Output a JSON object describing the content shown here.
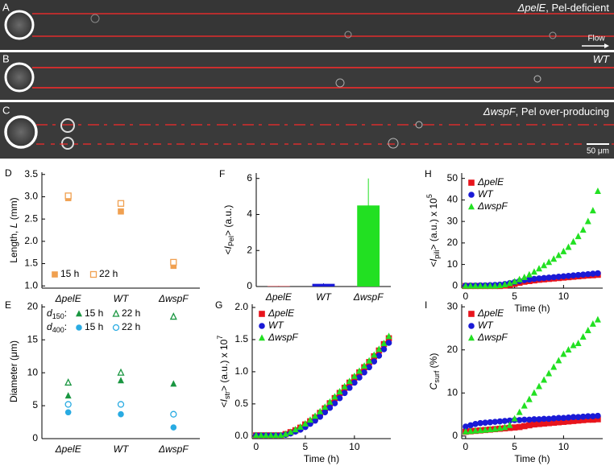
{
  "micrographs": [
    {
      "label": "A",
      "caption": [
        "ΔpelE",
        ", Pel-deficient"
      ]
    },
    {
      "label": "B",
      "caption": [
        "WT"
      ]
    },
    {
      "label": "C",
      "caption": [
        "ΔwspF",
        ", Pel over-producing"
      ]
    }
  ],
  "flow_label": "Flow",
  "scale_bar": "50 μm",
  "chart_data": [
    {
      "panel": "D",
      "type": "scatter",
      "categories": [
        "ΔpelE",
        "WT",
        "ΔwspF"
      ],
      "ylabel": [
        {
          "text": "Length, "
        },
        {
          "text": "L",
          "style": "italic"
        },
        {
          "text": " (mm)"
        }
      ],
      "ylim": [
        0.95,
        3.55
      ],
      "yticks": [
        {
          "value": 1,
          "label": "1.0"
        },
        1.5,
        {
          "value": 2,
          "label": "2.0"
        },
        2.5,
        {
          "value": 3,
          "label": "3.0"
        },
        3.5
      ],
      "legend": "lower left",
      "series": [
        {
          "name": "15 h",
          "color": "#f0a050",
          "marker": "square",
          "values": [
            2.97,
            2.67,
            1.45
          ]
        },
        {
          "name": "22 h",
          "color": "#f0a050",
          "marker": "square-open",
          "values": [
            3.02,
            2.85,
            1.53
          ]
        }
      ]
    },
    {
      "panel": "E",
      "type": "scatter",
      "categories": [
        "ΔpelE",
        "WT",
        "ΔwspF"
      ],
      "ylabel": [
        {
          "text": "Diameter (μm)"
        }
      ],
      "ylim": [
        0,
        20.4
      ],
      "yticks": [
        0,
        5,
        10,
        15,
        20
      ],
      "legend": "upper left",
      "legend_groups": [
        [
          {
            "text": "d",
            "style": "italic"
          },
          {
            "text": "150",
            "style": "sub"
          },
          {
            "text": ":"
          }
        ],
        [
          {
            "text": "d",
            "style": "italic"
          },
          {
            "text": "400",
            "style": "sub"
          },
          {
            "text": ":"
          }
        ]
      ],
      "series": [
        {
          "name": "15 h",
          "group": 0,
          "color": "#1a9641",
          "marker": "triangle",
          "values": [
            6.5,
            8.8,
            8.3
          ]
        },
        {
          "name": "22 h",
          "group": 0,
          "color": "#1a9641",
          "marker": "triangle-open",
          "values": [
            8.5,
            10,
            18.5
          ]
        },
        {
          "name": "15 h",
          "group": 1,
          "color": "#29abe2",
          "marker": "circle",
          "values": [
            4,
            3.7,
            1.7
          ]
        },
        {
          "name": "22 h",
          "group": 1,
          "color": "#29abe2",
          "marker": "circle-open",
          "values": [
            5.2,
            5.2,
            3.7
          ]
        }
      ]
    },
    {
      "panel": "F",
      "type": "bar",
      "categories": [
        "ΔpelE",
        "WT",
        "ΔwspF"
      ],
      "ylabel": [
        {
          "text": "<"
        },
        {
          "text": "I",
          "style": "italic"
        },
        {
          "text": "Pel",
          "style": "sub"
        },
        {
          "text": "> (a.u.)"
        }
      ],
      "ylim": [
        0,
        6.3
      ],
      "yticks": [
        0,
        2,
        4,
        6
      ],
      "values": [
        0.02,
        0.15,
        4.5
      ],
      "errors": [
        0.01,
        0.03,
        1.5
      ],
      "colors": [
        "#e8141c",
        "#1a1ad6",
        "#22e022"
      ]
    },
    {
      "panel": "G",
      "type": "scatter",
      "xlabel": "Time (h)",
      "x": [
        0,
        0.5,
        1,
        1.5,
        2,
        2.5,
        3,
        3.5,
        4,
        4.5,
        5,
        5.5,
        6,
        6.5,
        7,
        7.5,
        8,
        8.5,
        9,
        9.5,
        10,
        10.5,
        11,
        11.5,
        12,
        12.5,
        13,
        13.5
      ],
      "xlim": [
        -0.4,
        13.7
      ],
      "xticks": [
        0,
        5,
        10
      ],
      "ylim": [
        -0.04,
        2.05
      ],
      "yticks": [
        {
          "value": 0,
          "label": "0.0"
        },
        0.5,
        {
          "value": 1,
          "label": "1.0"
        },
        1.5,
        {
          "value": 2,
          "label": "2.0"
        }
      ],
      "ylabel": [
        {
          "text": "<"
        },
        {
          "text": "I",
          "style": "italic"
        },
        {
          "text": "str",
          "style": "sub"
        },
        {
          "text": "> (a.u.) x 10"
        },
        {
          "text": "7",
          "style": "sup"
        }
      ],
      "legend": "upper left",
      "series": [
        {
          "name": "ΔpelE",
          "color": "#e8141c",
          "marker": "square",
          "values": [
            0.01,
            0.01,
            0.01,
            0.01,
            0.01,
            0.01,
            0.03,
            0.06,
            0.09,
            0.13,
            0.18,
            0.23,
            0.29,
            0.36,
            0.43,
            0.51,
            0.59,
            0.67,
            0.75,
            0.83,
            0.91,
            0.99,
            1.07,
            1.15,
            1.24,
            1.33,
            1.43,
            1.52
          ]
        },
        {
          "name": "WT",
          "color": "#1a1ad6",
          "marker": "circle",
          "values": [
            0.01,
            0.01,
            0.01,
            0.01,
            0.01,
            0.01,
            0.02,
            0.04,
            0.07,
            0.1,
            0.14,
            0.19,
            0.24,
            0.3,
            0.37,
            0.44,
            0.51,
            0.59,
            0.67,
            0.75,
            0.83,
            0.91,
            0.99,
            1.07,
            1.16,
            1.25,
            1.35,
            1.45
          ]
        },
        {
          "name": "ΔwspF",
          "color": "#22e022",
          "marker": "triangle",
          "values": [
            0.01,
            0.01,
            0.01,
            0.01,
            0.01,
            0.01,
            0.03,
            0.06,
            0.1,
            0.14,
            0.19,
            0.25,
            0.31,
            0.38,
            0.45,
            0.53,
            0.61,
            0.69,
            0.77,
            0.85,
            0.93,
            1.01,
            1.09,
            1.17,
            1.26,
            1.35,
            1.44,
            1.55
          ]
        }
      ]
    },
    {
      "panel": "H",
      "type": "scatter",
      "xlabel": "Time (h)",
      "x": [
        0,
        0.5,
        1,
        1.5,
        2,
        2.5,
        3,
        3.5,
        4,
        4.5,
        5,
        5.5,
        6,
        6.5,
        7,
        7.5,
        8,
        8.5,
        9,
        9.5,
        10,
        10.5,
        11,
        11.5,
        12,
        12.5,
        13,
        13.5
      ],
      "xlim": [
        -0.4,
        14
      ],
      "xticks": [
        0,
        5,
        10
      ],
      "ylim": [
        -1,
        52.5
      ],
      "yticks": [
        0,
        10,
        20,
        30,
        40,
        50
      ],
      "ylabel": [
        {
          "text": "<"
        },
        {
          "text": "I",
          "style": "italic"
        },
        {
          "text": "pili",
          "style": "sub"
        },
        {
          "text": "> (a.u.) x 10"
        },
        {
          "text": "5",
          "style": "sup"
        }
      ],
      "legend": "upper left",
      "series": [
        {
          "name": "ΔpelE",
          "color": "#e8141c",
          "marker": "square",
          "values": [
            0,
            0,
            0,
            0,
            0,
            0,
            0,
            0,
            0.2,
            0.5,
            1,
            1.5,
            2,
            2.3,
            2.6,
            2.9,
            3.1,
            3.3,
            3.5,
            3.7,
            3.9,
            4.1,
            4.3,
            4.5,
            4.7,
            4.9,
            5,
            5.2
          ]
        },
        {
          "name": "WT",
          "color": "#1a1ad6",
          "marker": "circle",
          "values": [
            0.2,
            0.2,
            0.2,
            0.3,
            0.3,
            0.4,
            0.5,
            0.6,
            0.9,
            1.3,
            1.8,
            2.3,
            2.7,
            3,
            3.3,
            3.5,
            3.7,
            3.9,
            4.1,
            4.3,
            4.5,
            4.7,
            4.9,
            5.1,
            5.3,
            5.5,
            5.7,
            5.9
          ]
        },
        {
          "name": "ΔwspF",
          "color": "#22e022",
          "marker": "triangle",
          "values": [
            0,
            0,
            0,
            0,
            0,
            0,
            0,
            0.2,
            0.6,
            1.2,
            2,
            3,
            4,
            5.2,
            6.5,
            8,
            9.5,
            11,
            12.5,
            14.2,
            16,
            18,
            20.5,
            23,
            26,
            30,
            35,
            44
          ]
        }
      ]
    },
    {
      "panel": "I",
      "type": "scatter",
      "xlabel": "Time (h)",
      "x": [
        0,
        0.5,
        1,
        1.5,
        2,
        2.5,
        3,
        3.5,
        4,
        4.5,
        5,
        5.5,
        6,
        6.5,
        7,
        7.5,
        8,
        8.5,
        9,
        9.5,
        10,
        10.5,
        11,
        11.5,
        12,
        12.5,
        13,
        13.5
      ],
      "xlim": [
        -0.4,
        14
      ],
      "xticks": [
        0,
        5,
        10
      ],
      "ylim": [
        -0.6,
        30.6
      ],
      "yticks": [
        0,
        10,
        20,
        30
      ],
      "ylabel": [
        {
          "text": "C",
          "style": "italic"
        },
        {
          "text": "surf",
          "style": "sub"
        },
        {
          "text": " (%)"
        }
      ],
      "legend": "upper left",
      "series": [
        {
          "name": "ΔpelE",
          "color": "#e8141c",
          "marker": "square",
          "values": [
            1,
            1.1,
            1.2,
            1.3,
            1.4,
            1.5,
            1.6,
            1.7,
            1.8,
            1.9,
            2,
            2.1,
            2.3,
            2.5,
            2.7,
            2.8,
            2.9,
            3,
            3.1,
            3.2,
            3.3,
            3.4,
            3.5,
            3.6,
            3.7,
            3.8,
            3.8,
            3.9
          ]
        },
        {
          "name": "WT",
          "color": "#1a1ad6",
          "marker": "circle",
          "values": [
            2.2,
            2.5,
            2.8,
            3,
            3.1,
            3.2,
            3.3,
            3.4,
            3.5,
            3.6,
            3.7,
            3.7,
            3.8,
            3.8,
            3.9,
            3.9,
            4,
            4,
            4.1,
            4.2,
            4.2,
            4.3,
            4.4,
            4.4,
            4.5,
            4.6,
            4.6,
            4.7
          ]
        },
        {
          "name": "ΔwspF",
          "color": "#22e022",
          "marker": "triangle",
          "values": [
            1,
            1.1,
            1.2,
            1.3,
            1.4,
            1.5,
            1.6,
            1.8,
            2,
            2.5,
            4,
            5.5,
            7,
            8.5,
            10,
            11.5,
            13,
            14.5,
            16,
            17.5,
            19,
            20,
            21,
            21.5,
            23,
            24.5,
            26,
            27
          ]
        }
      ]
    }
  ]
}
